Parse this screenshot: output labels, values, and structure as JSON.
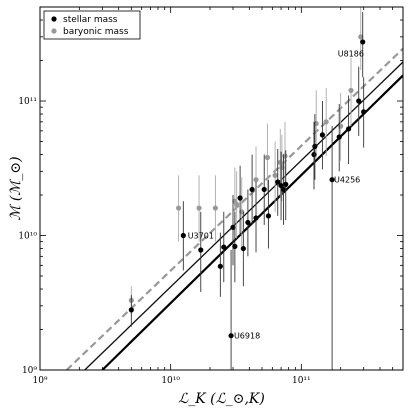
{
  "chart_data": {
    "type": "scatter",
    "title": "",
    "xlabel": "ℒ_K (ℒ_⊙,K)",
    "ylabel": "ℳ (ℳ_⊙)",
    "xscale": "log",
    "yscale": "log",
    "xlim": [
      1000000000,
      600000000000
    ],
    "ylim": [
      1000000000,
      500000000000
    ],
    "grid": false,
    "legend_position": "top-left",
    "x_ticks": [
      {
        "value": 1000000000,
        "label": "10⁹"
      },
      {
        "value": 10000000000,
        "label": "10¹⁰"
      },
      {
        "value": 100000000000,
        "label": "10¹¹"
      }
    ],
    "y_ticks": [
      {
        "value": 1000000000,
        "label": "10⁹"
      },
      {
        "value": 10000000000,
        "label": "10¹⁰"
      },
      {
        "value": 100000000000,
        "label": "10¹¹"
      }
    ],
    "series": [
      {
        "name": "stellar mass",
        "marker": "circle",
        "color": "#000000",
        "points": [
          {
            "x": 5000000000.0,
            "y": 2800000000.0,
            "ylo": 2100000000.0,
            "yhi": 3600000000.0
          },
          {
            "x": 12500000000.0,
            "y": 10000000000.0,
            "ylo": 5500000000.0,
            "yhi": 18000000000.0
          },
          {
            "x": 17000000000.0,
            "y": 7800000000.0,
            "ylo": 3800000000.0,
            "yhi": 15000000000.0
          },
          {
            "x": 24000000000.0,
            "y": 5900000000.0,
            "ylo": 3500000000.0,
            "yhi": 10500000000.0
          },
          {
            "x": 25500000000.0,
            "y": 8200000000.0,
            "ylo": 4500000000.0,
            "yhi": 15000000000.0
          },
          {
            "x": 29000000000.0,
            "y": 1800000000.0,
            "ylo": 1000000000.0,
            "yhi": 7800000000.0
          },
          {
            "x": 30000000000.0,
            "y": 11500000000.0,
            "ylo": 6000000000.0,
            "yhi": 20000000000.0
          },
          {
            "x": 31000000000.0,
            "y": 8300000000.0,
            "ylo": 4500000000.0,
            "yhi": 15000000000.0
          },
          {
            "x": 34000000000.0,
            "y": 19000000000.0,
            "ylo": 10000000000.0,
            "yhi": 33000000000.0
          },
          {
            "x": 36000000000.0,
            "y": 8000000000.0,
            "ylo": 4200000000.0,
            "yhi": 15000000000.0
          },
          {
            "x": 39000000000.0,
            "y": 12500000000.0,
            "ylo": 7000000000.0,
            "yhi": 22000000000.0
          },
          {
            "x": 42000000000.0,
            "y": 22000000000.0,
            "ylo": 12000000000.0,
            "yhi": 40000000000.0
          },
          {
            "x": 45000000000.0,
            "y": 13500000000.0,
            "ylo": 7500000000.0,
            "yhi": 25000000000.0
          },
          {
            "x": 52000000000.0,
            "y": 22000000000.0,
            "ylo": 12000000000.0,
            "yhi": 40000000000.0
          },
          {
            "x": 56000000000.0,
            "y": 14000000000.0,
            "ylo": 8000000000.0,
            "yhi": 26000000000.0
          },
          {
            "x": 66000000000.0,
            "y": 25000000000.0,
            "ylo": 14000000000.0,
            "yhi": 44000000000.0
          },
          {
            "x": 70000000000.0,
            "y": 23500000000.0,
            "ylo": 13000000000.0,
            "yhi": 42000000000.0
          },
          {
            "x": 73000000000.0,
            "y": 22000000000.0,
            "ylo": 12000000000.0,
            "yhi": 40000000000.0
          },
          {
            "x": 76000000000.0,
            "y": 24000000000.0,
            "ylo": 13000000000.0,
            "yhi": 43000000000.0
          },
          {
            "x": 125000000000.0,
            "y": 40000000000.0,
            "ylo": 22000000000.0,
            "yhi": 70000000000.0
          },
          {
            "x": 127000000000.0,
            "y": 46000000000.0,
            "ylo": 26000000000.0,
            "yhi": 80000000000.0
          },
          {
            "x": 145000000000.0,
            "y": 56000000000.0,
            "ylo": 31000000000.0,
            "yhi": 100000000000.0
          },
          {
            "x": 172000000000.0,
            "y": 26000000000.0,
            "ylo": 1000000000.0,
            "yhi": 65000000000.0
          },
          {
            "x": 195000000000.0,
            "y": 54000000000.0,
            "ylo": 30000000000.0,
            "yhi": 95000000000.0
          },
          {
            "x": 230000000000.0,
            "y": 62000000000.0,
            "ylo": 34000000000.0,
            "yhi": 110000000000.0
          },
          {
            "x": 275000000000.0,
            "y": 100000000000.0,
            "ylo": 55000000000.0,
            "yhi": 180000000000.0
          },
          {
            "x": 295000000000.0,
            "y": 275000000000.0,
            "ylo": 150000000000.0,
            "yhi": 460000000000.0
          },
          {
            "x": 300000000000.0,
            "y": 83000000000.0,
            "ylo": 45000000000.0,
            "yhi": 150000000000.0
          }
        ]
      },
      {
        "name": "baryonic mass",
        "marker": "circle",
        "color": "#999999",
        "points": [
          {
            "x": 5000000000.0,
            "y": 3300000000.0,
            "ylo": 2500000000.0,
            "yhi": 4200000000.0
          },
          {
            "x": 11500000000.0,
            "y": 16000000000.0,
            "ylo": 9000000000.0,
            "yhi": 28000000000.0
          },
          {
            "x": 16500000000.0,
            "y": 16000000000.0,
            "ylo": 9000000000.0,
            "yhi": 28000000000.0
          },
          {
            "x": 22000000000.0,
            "y": 16000000000.0,
            "ylo": 9000000000.0,
            "yhi": 28000000000.0
          },
          {
            "x": 31000000000.0,
            "y": 18000000000.0,
            "ylo": 10000000000.0,
            "yhi": 32000000000.0
          },
          {
            "x": 32000000000.0,
            "y": 17000000000.0,
            "ylo": 9500000000.0,
            "yhi": 30000000000.0
          },
          {
            "x": 35000000000.0,
            "y": 15000000000.0,
            "ylo": 8000000000.0,
            "yhi": 27000000000.0
          },
          {
            "x": 45000000000.0,
            "y": 26000000000.0,
            "ylo": 14000000000.0,
            "yhi": 46000000000.0
          },
          {
            "x": 55000000000.0,
            "y": 38000000000.0,
            "ylo": 21000000000.0,
            "yhi": 68000000000.0
          },
          {
            "x": 63000000000.0,
            "y": 28000000000.0,
            "ylo": 15000000000.0,
            "yhi": 50000000000.0
          },
          {
            "x": 69000000000.0,
            "y": 35000000000.0,
            "ylo": 19000000000.0,
            "yhi": 62000000000.0
          },
          {
            "x": 71000000000.0,
            "y": 32000000000.0,
            "ylo": 18000000000.0,
            "yhi": 56000000000.0
          },
          {
            "x": 75000000000.0,
            "y": 39000000000.0,
            "ylo": 22000000000.0,
            "yhi": 70000000000.0
          },
          {
            "x": 130000000000.0,
            "y": 68000000000.0,
            "ylo": 38000000000.0,
            "yhi": 120000000000.0
          },
          {
            "x": 155000000000.0,
            "y": 70000000000.0,
            "ylo": 39000000000.0,
            "yhi": 125000000000.0
          },
          {
            "x": 200000000000.0,
            "y": 65000000000.0,
            "ylo": 36000000000.0,
            "yhi": 115000000000.0
          },
          {
            "x": 240000000000.0,
            "y": 120000000000.0,
            "ylo": 65000000000.0,
            "yhi": 210000000000.0
          },
          {
            "x": 285000000000.0,
            "y": 300000000000.0,
            "ylo": 170000000000.0,
            "yhi": 500000000000.0
          }
        ]
      }
    ],
    "fit_lines": [
      {
        "style": "solid",
        "color": "#000000",
        "width": 2.2,
        "x": [
          3000000000.0,
          600000000000.0
        ],
        "y": [
          1000000000.0,
          155000000000.0
        ]
      },
      {
        "style": "solid",
        "color": "#999999",
        "width": 1.6,
        "x": [
          2200000000.0,
          600000000000.0
        ],
        "y": [
          1000000000.0,
          195000000000.0
        ]
      },
      {
        "style": "solid",
        "color": "#000000",
        "width": 1.0,
        "x": [
          2200000000.0,
          600000000000.0
        ],
        "y": [
          1000000000.0,
          195000000000.0
        ]
      },
      {
        "style": "dashed",
        "color": "#999999",
        "width": 2.2,
        "x": [
          1600000000.0,
          600000000000.0
        ],
        "y": [
          1000000000.0,
          245000000000.0
        ]
      }
    ],
    "annotations": [
      {
        "text": "U8186",
        "x": 190000000000.0,
        "y": 215000000000.0,
        "anchor": "start"
      },
      {
        "text": "U3701",
        "x": 13500000000.0,
        "y": 10000000000.0,
        "anchor": "start"
      },
      {
        "text": "U4256",
        "x": 178000000000.0,
        "y": 26000000000.0,
        "anchor": "start"
      },
      {
        "text": "U6918",
        "x": 30500000000.0,
        "y": 1800000000.0,
        "anchor": "start"
      }
    ]
  }
}
